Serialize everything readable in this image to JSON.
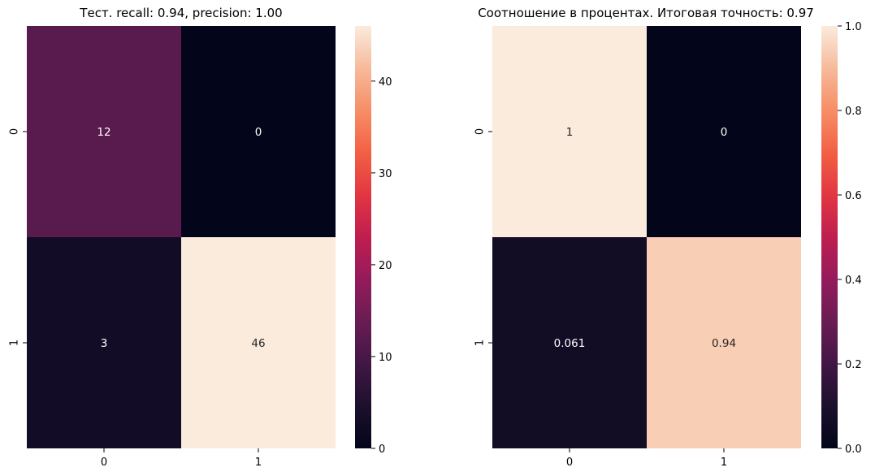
{
  "chart_data": [
    {
      "type": "heatmap",
      "title": "Тест. recall: 0.94, precision: 1.00",
      "x_categories": [
        "0",
        "1"
      ],
      "y_categories": [
        "0",
        "1"
      ],
      "values": [
        [
          12,
          0
        ],
        [
          3,
          46
        ]
      ],
      "annotations": [
        [
          "12",
          "0"
        ],
        [
          "3",
          "46"
        ]
      ],
      "colormap": "rocket",
      "vmin": 0,
      "vmax": 46,
      "colorbar_ticks": [
        "0",
        "10",
        "20",
        "30",
        "40"
      ]
    },
    {
      "type": "heatmap",
      "title": "Соотношение в процентах. Итоговая точность: 0.97",
      "x_categories": [
        "0",
        "1"
      ],
      "y_categories": [
        "0",
        "1"
      ],
      "values": [
        [
          1,
          0
        ],
        [
          0.061,
          0.94
        ]
      ],
      "annotations": [
        [
          "1",
          "0"
        ],
        [
          "0.061",
          "0.94"
        ]
      ],
      "colormap": "rocket",
      "vmin": 0,
      "vmax": 1,
      "colorbar_ticks": [
        "0.0",
        "0.2",
        "0.4",
        "0.6",
        "0.8",
        "1.0"
      ]
    }
  ]
}
